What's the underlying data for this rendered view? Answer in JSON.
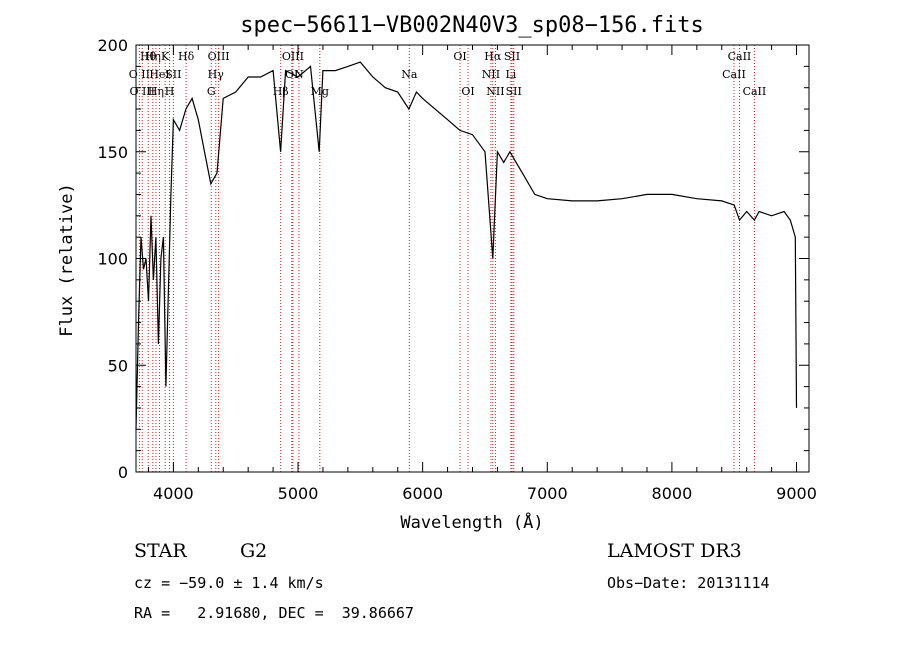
{
  "chart_data": {
    "type": "line",
    "title": "spec−56611−VB002N40V3_sp08−156.fits",
    "xlabel": "Wavelength (Å)",
    "ylabel": "Flux (relative)",
    "xlim": [
      3700,
      9100
    ],
    "ylim": [
      0,
      200
    ],
    "xticks": [
      4000,
      5000,
      6000,
      7000,
      8000,
      9000
    ],
    "yticks": [
      0,
      50,
      100,
      150,
      200
    ],
    "xtick_labels": [
      "4000",
      "5000",
      "6000",
      "7000",
      "8000",
      "9000"
    ],
    "ytick_labels": [
      "0",
      "50",
      "100",
      "150",
      "200"
    ],
    "series": [
      {
        "name": "spectrum",
        "color": "#000000",
        "x": [
          3700,
          3720,
          3740,
          3760,
          3780,
          3800,
          3820,
          3840,
          3860,
          3880,
          3900,
          3920,
          3940,
          3960,
          3980,
          4000,
          4050,
          4100,
          4150,
          4200,
          4250,
          4300,
          4350,
          4400,
          4500,
          4600,
          4700,
          4800,
          4860,
          4900,
          5000,
          5100,
          5170,
          5200,
          5300,
          5400,
          5500,
          5600,
          5700,
          5800,
          5890,
          5950,
          6000,
          6100,
          6200,
          6300,
          6400,
          6500,
          6563,
          6600,
          6650,
          6700,
          6750,
          6800,
          6900,
          7000,
          7200,
          7400,
          7600,
          7800,
          8000,
          8200,
          8400,
          8500,
          8542,
          8600,
          8662,
          8700,
          8800,
          8900,
          8950,
          8990,
          9000
        ],
        "y": [
          20,
          70,
          110,
          95,
          100,
          80,
          120,
          90,
          110,
          60,
          100,
          110,
          40,
          85,
          130,
          165,
          160,
          170,
          175,
          165,
          150,
          135,
          140,
          175,
          178,
          185,
          185,
          188,
          150,
          188,
          185,
          190,
          150,
          188,
          188,
          190,
          192,
          185,
          180,
          178,
          170,
          178,
          175,
          170,
          165,
          160,
          158,
          150,
          100,
          150,
          145,
          150,
          145,
          140,
          130,
          128,
          127,
          127,
          128,
          130,
          130,
          128,
          127,
          125,
          118,
          122,
          118,
          122,
          120,
          122,
          118,
          110,
          30
        ]
      }
    ],
    "lines": [
      {
        "label": "Hθ",
        "x": 3798,
        "row": 0
      },
      {
        "label": "O II",
        "x": 3727,
        "row": 1
      },
      {
        "label": "O III",
        "x": 3750,
        "row": 2
      },
      {
        "label": "Hη",
        "x": 3835,
        "row": 0
      },
      {
        "label": "HeI",
        "x": 3889,
        "row": 1
      },
      {
        "label": "Hη",
        "x": 3860,
        "row": 2
      },
      {
        "label": "K",
        "x": 3934,
        "row": 0
      },
      {
        "label": "SII",
        "x": 4000,
        "row": 1
      },
      {
        "label": "H",
        "x": 3969,
        "row": 2
      },
      {
        "label": "Hδ",
        "x": 4102,
        "row": 0
      },
      {
        "label": "OIII",
        "x": 4363,
        "row": 0
      },
      {
        "label": "Hγ",
        "x": 4340,
        "row": 1
      },
      {
        "label": "G",
        "x": 4304,
        "row": 2
      },
      {
        "label": "OIII",
        "x": 4959,
        "row": 0
      },
      {
        "label": "OI",
        "x": 4950,
        "row": 1
      },
      {
        "label": "Hβ",
        "x": 4861,
        "row": 2
      },
      {
        "label": "N",
        "x": 5007,
        "row": 1
      },
      {
        "label": "Mg",
        "x": 5175,
        "row": 2
      },
      {
        "label": "Na",
        "x": 5893,
        "row": 1
      },
      {
        "label": "OI",
        "x": 6300,
        "row": 0
      },
      {
        "label": "OI",
        "x": 6364,
        "row": 2
      },
      {
        "label": "Hα",
        "x": 6563,
        "row": 0
      },
      {
        "label": "NII",
        "x": 6548,
        "row": 1
      },
      {
        "label": "NII",
        "x": 6584,
        "row": 2
      },
      {
        "label": "SII",
        "x": 6717,
        "row": 0
      },
      {
        "label": "Li",
        "x": 6708,
        "row": 1
      },
      {
        "label": "SII",
        "x": 6731,
        "row": 2
      },
      {
        "label": "CaII",
        "x": 8542,
        "row": 0
      },
      {
        "label": "CaII",
        "x": 8498,
        "row": 1
      },
      {
        "label": "CaII",
        "x": 8662,
        "row": 2
      }
    ]
  },
  "info": {
    "object_class": "STAR",
    "subclass": "G2",
    "survey": "LAMOST DR3",
    "redshift": "cz = −59.0 ± 1.4 km/s",
    "obs_date": "Obs−Date: 20131114",
    "coords": "RA =   2.91680, DEC =  39.86667"
  },
  "colors": {
    "spectrum": "#000000",
    "lines": "#cc2222",
    "frame": "#000000"
  }
}
